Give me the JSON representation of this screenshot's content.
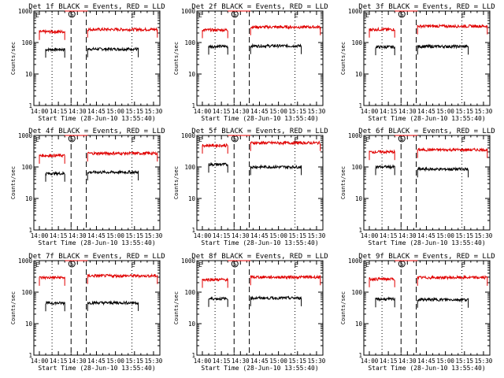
{
  "page": {
    "background": "#ffffff"
  },
  "colors": {
    "events": "#000000",
    "lld": "#e00000",
    "axes": "#000000"
  },
  "chart_data": [
    {
      "type": "line",
      "title": "Det 1f BLACK = Events, RED = LLD",
      "series": [
        {
          "name": "Events",
          "color": "#000000",
          "segments": [
            {
              "start": "14:05",
              "end": "14:20",
              "level": 60
            },
            {
              "start": "14:38",
              "end": "15:18",
              "level": 62
            }
          ]
        },
        {
          "name": "LLD",
          "color": "#e00000",
          "segments": [
            {
              "start": "14:00",
              "end": "14:20",
              "level": 220
            },
            {
              "start": "14:20",
              "end": "14:38",
              "level": 1000
            },
            {
              "start": "14:38",
              "end": "15:33",
              "level": 260
            }
          ]
        }
      ],
      "saa_in": "14:25",
      "saa_out": "14:37",
      "dotted_lines": [
        "14:10",
        "15:13"
      ]
    },
    {
      "type": "line",
      "title": "Det 2f BLACK = Events, RED = LLD",
      "series": [
        {
          "name": "Events",
          "color": "#000000",
          "segments": [
            {
              "start": "14:05",
              "end": "14:20",
              "level": 75
            },
            {
              "start": "14:38",
              "end": "15:18",
              "level": 78
            }
          ]
        },
        {
          "name": "LLD",
          "color": "#e00000",
          "segments": [
            {
              "start": "14:00",
              "end": "14:20",
              "level": 250
            },
            {
              "start": "14:20",
              "end": "14:38",
              "level": 1000
            },
            {
              "start": "14:38",
              "end": "15:33",
              "level": 310
            }
          ]
        }
      ],
      "saa_in": "14:25",
      "saa_out": "14:37",
      "dotted_lines": [
        "14:10",
        "15:13"
      ]
    },
    {
      "type": "line",
      "title": "Det 3f BLACK = Events, RED = LLD",
      "series": [
        {
          "name": "Events",
          "color": "#000000",
          "segments": [
            {
              "start": "14:05",
              "end": "14:20",
              "level": 72
            },
            {
              "start": "14:38",
              "end": "15:18",
              "level": 75
            }
          ]
        },
        {
          "name": "LLD",
          "color": "#e00000",
          "segments": [
            {
              "start": "14:00",
              "end": "14:20",
              "level": 260
            },
            {
              "start": "14:20",
              "end": "14:38",
              "level": 1000
            },
            {
              "start": "14:38",
              "end": "15:33",
              "level": 330
            }
          ]
        }
      ],
      "saa_in": "14:25",
      "saa_out": "14:37",
      "dotted_lines": [
        "14:10",
        "15:13"
      ]
    },
    {
      "type": "line",
      "title": "Det 4f BLACK = Events, RED = LLD",
      "series": [
        {
          "name": "Events",
          "color": "#000000",
          "segments": [
            {
              "start": "14:05",
              "end": "14:20",
              "level": 62
            },
            {
              "start": "14:38",
              "end": "15:18",
              "level": 68
            }
          ]
        },
        {
          "name": "LLD",
          "color": "#e00000",
          "segments": [
            {
              "start": "14:00",
              "end": "14:20",
              "level": 230
            },
            {
              "start": "14:20",
              "end": "14:38",
              "level": 1000
            },
            {
              "start": "14:38",
              "end": "15:33",
              "level": 270
            }
          ]
        }
      ],
      "saa_in": "14:25",
      "saa_out": "14:37",
      "dotted_lines": [
        "14:10",
        "15:13"
      ]
    },
    {
      "type": "line",
      "title": "Det 5f BLACK = Events, RED = LLD",
      "series": [
        {
          "name": "Events",
          "color": "#000000",
          "segments": [
            {
              "start": "14:05",
              "end": "14:20",
              "level": 120
            },
            {
              "start": "14:38",
              "end": "15:18",
              "level": 100
            }
          ]
        },
        {
          "name": "LLD",
          "color": "#e00000",
          "segments": [
            {
              "start": "14:00",
              "end": "14:20",
              "level": 480
            },
            {
              "start": "14:20",
              "end": "14:38",
              "level": 1000
            },
            {
              "start": "14:38",
              "end": "15:33",
              "level": 580
            }
          ]
        }
      ],
      "saa_in": "14:25",
      "saa_out": "14:37",
      "dotted_lines": [
        "14:10",
        "15:13"
      ]
    },
    {
      "type": "line",
      "title": "Det 6f BLACK = Events, RED = LLD",
      "series": [
        {
          "name": "Events",
          "color": "#000000",
          "segments": [
            {
              "start": "14:05",
              "end": "14:20",
              "level": 100
            },
            {
              "start": "14:38",
              "end": "15:18",
              "level": 85
            }
          ]
        },
        {
          "name": "LLD",
          "color": "#e00000",
          "segments": [
            {
              "start": "14:00",
              "end": "14:20",
              "level": 300
            },
            {
              "start": "14:20",
              "end": "14:38",
              "level": 1000
            },
            {
              "start": "14:38",
              "end": "15:33",
              "level": 350
            }
          ]
        }
      ],
      "saa_in": "14:25",
      "saa_out": "14:37",
      "dotted_lines": [
        "14:10",
        "15:13"
      ]
    },
    {
      "type": "line",
      "title": "Det 7f BLACK = Events, RED = LLD",
      "series": [
        {
          "name": "Events",
          "color": "#000000",
          "segments": [
            {
              "start": "14:05",
              "end": "14:20",
              "level": 45
            },
            {
              "start": "14:38",
              "end": "15:18",
              "level": 46
            }
          ]
        },
        {
          "name": "LLD",
          "color": "#e00000",
          "segments": [
            {
              "start": "14:00",
              "end": "14:20",
              "level": 290
            },
            {
              "start": "14:20",
              "end": "14:38",
              "level": 1000
            },
            {
              "start": "14:38",
              "end": "15:33",
              "level": 330
            }
          ]
        }
      ],
      "saa_in": "14:25",
      "saa_out": "14:37",
      "dotted_lines": [
        "14:10",
        "15:13"
      ]
    },
    {
      "type": "line",
      "title": "Det 8f BLACK = Events, RED = LLD",
      "series": [
        {
          "name": "Events",
          "color": "#000000",
          "segments": [
            {
              "start": "14:05",
              "end": "14:20",
              "level": 62
            },
            {
              "start": "14:38",
              "end": "15:18",
              "level": 65
            }
          ]
        },
        {
          "name": "LLD",
          "color": "#e00000",
          "segments": [
            {
              "start": "14:00",
              "end": "14:20",
              "level": 250
            },
            {
              "start": "14:20",
              "end": "14:38",
              "level": 1000
            },
            {
              "start": "14:38",
              "end": "15:33",
              "level": 300
            }
          ]
        }
      ],
      "saa_in": "14:25",
      "saa_out": "14:37",
      "dotted_lines": [
        "14:10",
        "15:13"
      ]
    },
    {
      "type": "line",
      "title": "Det 9f BLACK = Events, RED = LLD",
      "series": [
        {
          "name": "Events",
          "color": "#000000",
          "segments": [
            {
              "start": "14:05",
              "end": "14:20",
              "level": 60
            },
            {
              "start": "14:38",
              "end": "15:18",
              "level": 58
            }
          ]
        },
        {
          "name": "LLD",
          "color": "#e00000",
          "segments": [
            {
              "start": "14:00",
              "end": "14:20",
              "level": 260
            },
            {
              "start": "14:20",
              "end": "14:38",
              "level": 1000
            },
            {
              "start": "14:38",
              "end": "15:33",
              "level": 290
            }
          ]
        }
      ],
      "saa_in": "14:25",
      "saa_out": "14:37",
      "dotted_lines": [
        "14:10",
        "15:13"
      ]
    }
  ],
  "shared": {
    "xlabel": "Start Time (28-Jun-10 13:55:40)",
    "ylabel": "Counts/sec",
    "x_ticks": [
      "14:00",
      "14:15",
      "14:30",
      "14:45",
      "15:00",
      "15:15",
      "15:30"
    ],
    "x_range": [
      "13:55:40",
      "15:35"
    ],
    "y_ticks": [
      "1",
      "10",
      "100",
      "1000"
    ],
    "y_range": [
      1,
      1000
    ],
    "y_scale": "log",
    "marker_E": "E",
    "marker_S": "S"
  }
}
